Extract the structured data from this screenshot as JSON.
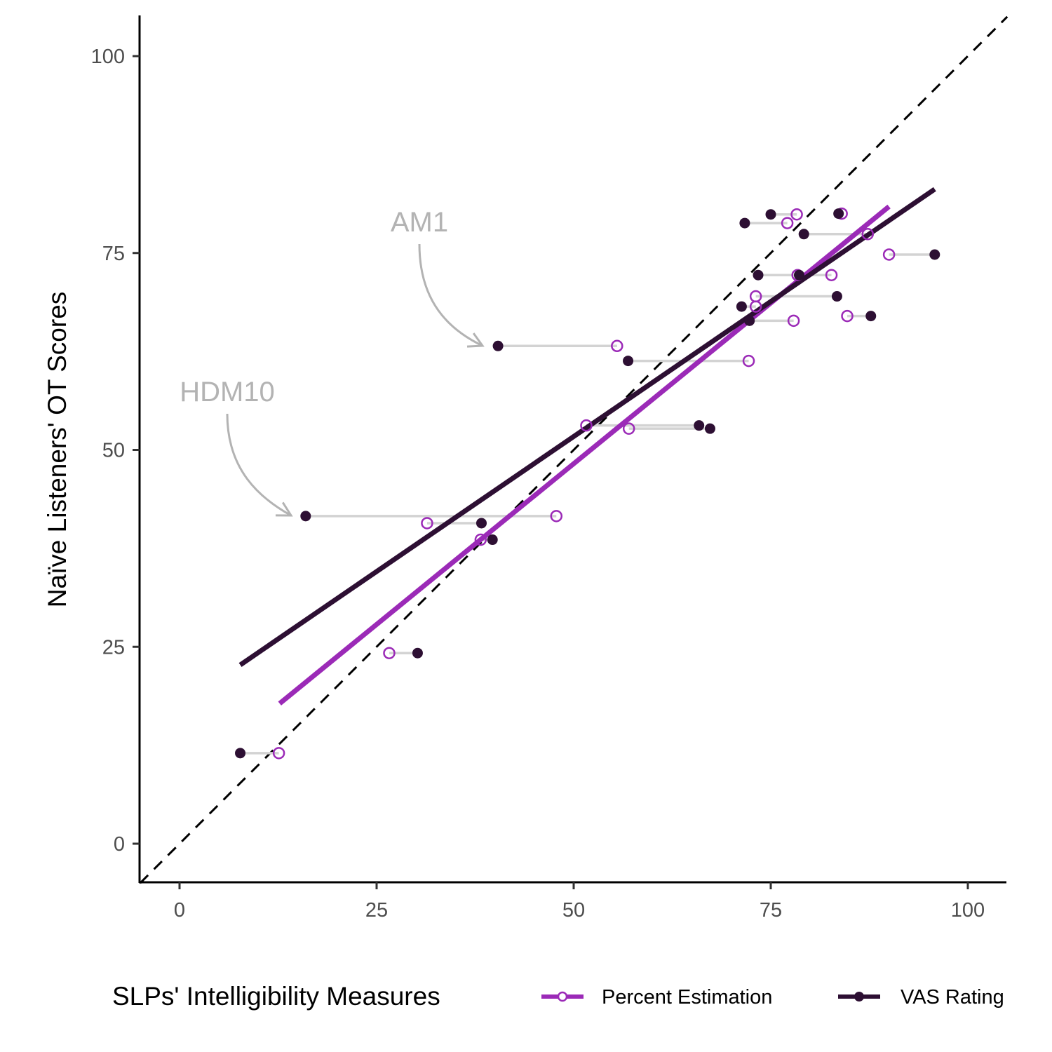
{
  "chart_data": {
    "type": "scatter",
    "title": "",
    "xlabel": "SLPs' Intelligibility Measures",
    "ylabel": "Naïve Listeners' OT Scores",
    "xlim": [
      -5,
      105
    ],
    "ylim": [
      -5,
      105
    ],
    "xticks": [
      0,
      25,
      50,
      75,
      100
    ],
    "yticks": [
      0,
      25,
      50,
      75,
      100
    ],
    "xtick_labels": [
      "0",
      "25",
      "50",
      "75",
      "100"
    ],
    "ytick_labels": [
      "0",
      "25",
      "50",
      "75",
      "100"
    ],
    "grid": false,
    "identity_line": {
      "style": "dashed",
      "color": "#000000",
      "slope": 1,
      "intercept": 0
    },
    "legend": {
      "title": "SLPs' Intelligibility Measures",
      "placement": "bottom",
      "entries": [
        {
          "label": "Percent Estimation",
          "color": "#9b2ab7",
          "marker": "open-circle"
        },
        {
          "label": "VAS Rating",
          "color": "#2d0f33",
          "marker": "filled-circle"
        }
      ]
    },
    "connector_color": "#d3d3d3",
    "series": [
      {
        "name": "Percent Estimation",
        "color": "#9b2ab7",
        "marker": "open-circle",
        "points": [
          {
            "x": 12.6,
            "y": 11.5
          },
          {
            "x": 26.6,
            "y": 24.2
          },
          {
            "x": 38.2,
            "y": 38.6
          },
          {
            "x": 31.4,
            "y": 40.7
          },
          {
            "x": 47.8,
            "y": 41.6
          },
          {
            "x": 57.0,
            "y": 52.7
          },
          {
            "x": 51.6,
            "y": 53.1
          },
          {
            "x": 72.2,
            "y": 61.3
          },
          {
            "x": 55.5,
            "y": 63.2
          },
          {
            "x": 77.9,
            "y": 66.4
          },
          {
            "x": 84.7,
            "y": 67.0
          },
          {
            "x": 73.1,
            "y": 68.2
          },
          {
            "x": 73.1,
            "y": 69.5
          },
          {
            "x": 78.4,
            "y": 72.2
          },
          {
            "x": 82.7,
            "y": 72.2
          },
          {
            "x": 90.0,
            "y": 74.8
          },
          {
            "x": 87.3,
            "y": 77.4
          },
          {
            "x": 77.1,
            "y": 78.8
          },
          {
            "x": 78.3,
            "y": 79.9
          },
          {
            "x": 84.0,
            "y": 80.0
          }
        ],
        "fit_line": {
          "x": [
            12.7,
            90.0
          ],
          "y": [
            17.8,
            80.9
          ]
        }
      },
      {
        "name": "VAS Rating",
        "color": "#2d0f33",
        "marker": "filled-circle",
        "points": [
          {
            "x": 7.7,
            "y": 11.5
          },
          {
            "x": 30.2,
            "y": 24.2
          },
          {
            "x": 39.7,
            "y": 38.6
          },
          {
            "x": 38.3,
            "y": 40.7
          },
          {
            "x": 16.0,
            "y": 41.6
          },
          {
            "x": 67.3,
            "y": 52.7
          },
          {
            "x": 65.9,
            "y": 53.1
          },
          {
            "x": 56.9,
            "y": 61.3
          },
          {
            "x": 40.4,
            "y": 63.2
          },
          {
            "x": 72.3,
            "y": 66.4
          },
          {
            "x": 87.7,
            "y": 67.0
          },
          {
            "x": 71.3,
            "y": 68.2
          },
          {
            "x": 83.4,
            "y": 69.5
          },
          {
            "x": 73.4,
            "y": 72.2
          },
          {
            "x": 78.6,
            "y": 72.2
          },
          {
            "x": 95.8,
            "y": 74.8
          },
          {
            "x": 79.2,
            "y": 77.4
          },
          {
            "x": 71.7,
            "y": 78.8
          },
          {
            "x": 75.0,
            "y": 79.9
          },
          {
            "x": 83.6,
            "y": 80.0
          }
        ],
        "fit_line": {
          "x": [
            7.7,
            95.8
          ],
          "y": [
            22.7,
            83.1
          ]
        }
      }
    ],
    "annotations": [
      {
        "text": "AM1",
        "target_x": 40.4,
        "target_y": 63.2,
        "color": "#b3b3b3"
      },
      {
        "text": "HDM10",
        "target_x": 16.0,
        "target_y": 41.6,
        "color": "#b3b3b3"
      }
    ]
  }
}
